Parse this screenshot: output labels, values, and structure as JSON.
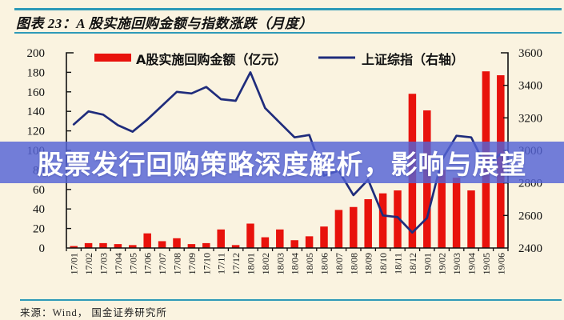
{
  "page": {
    "background_color": "#FAF3E0",
    "accent_line_color": "#2E9AB8"
  },
  "header": {
    "title": "图表 23：A 股实施回购金额与指数涨跌（月度）"
  },
  "overlay_banner": {
    "text": "股票发行回购策略深度解析，影响与展望",
    "bg_color_rgba": "rgba(84,99,213,0.82)",
    "text_color": "#FFFFFF"
  },
  "footer": {
    "source": "来源：Wind，  国金证券研究所"
  },
  "chart_data": {
    "type": "bar+line combo",
    "grid": "off",
    "legend_position": "top",
    "categories": [
      "17/01",
      "17/02",
      "17/03",
      "17/04",
      "17/05",
      "17/06",
      "17/07",
      "17/08",
      "17/09",
      "17/10",
      "17/11",
      "17/12",
      "18/01",
      "18/02",
      "18/03",
      "18/04",
      "18/05",
      "18/06",
      "18/07",
      "18/08",
      "18/09",
      "18/10",
      "18/11",
      "18/12",
      "19/01",
      "19/02",
      "19/03",
      "19/04",
      "19/05",
      "19/06"
    ],
    "series": [
      {
        "name": "A股实施回购金额（亿元）",
        "type": "bar",
        "axis": "left",
        "color": "#E8120C",
        "values": [
          2,
          5,
          5,
          4,
          3,
          15,
          7,
          10,
          4,
          5,
          19,
          3,
          25,
          11,
          19,
          8,
          12,
          22,
          39,
          42,
          50,
          56,
          59,
          158,
          141,
          80,
          72,
          59,
          181,
          177
        ]
      },
      {
        "name": "上证综指（右轴）",
        "type": "line",
        "axis": "right",
        "color": "#1F2C7C",
        "values": [
          3160,
          3240,
          3220,
          3155,
          3115,
          3190,
          3275,
          3360,
          3350,
          3390,
          3315,
          3305,
          3480,
          3260,
          3170,
          3080,
          3095,
          2845,
          2875,
          2725,
          2820,
          2600,
          2590,
          2495,
          2585,
          2940,
          3090,
          3080,
          2900,
          2980
        ]
      }
    ],
    "left_axis": {
      "min": 0,
      "max": 200,
      "step": 20,
      "ticks": [
        0,
        20,
        40,
        60,
        80,
        100,
        120,
        140,
        160,
        180,
        200
      ]
    },
    "right_axis": {
      "min": 2400,
      "max": 3600,
      "step": 200,
      "ticks": [
        2400,
        2600,
        2800,
        3000,
        3200,
        3400,
        3600
      ]
    },
    "text_color": "#111111"
  }
}
